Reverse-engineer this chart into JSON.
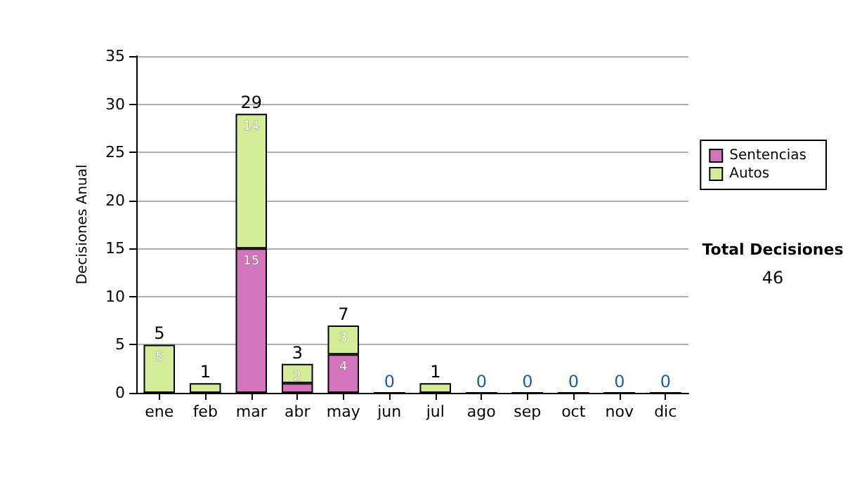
{
  "chart_data": {
    "type": "bar",
    "stacked": true,
    "ylabel": "Decisiones Anual",
    "categories": [
      "ene",
      "feb",
      "mar",
      "abr",
      "may",
      "jun",
      "jul",
      "ago",
      "sep",
      "oct",
      "nov",
      "dic"
    ],
    "series": [
      {
        "name": "Sentencias",
        "color": "#d474bc",
        "values": [
          0,
          0,
          15,
          1,
          4,
          0,
          0,
          0,
          0,
          0,
          0,
          0
        ],
        "value_labels": [
          null,
          null,
          "15",
          null,
          "4",
          null,
          null,
          null,
          null,
          null,
          null,
          null
        ]
      },
      {
        "name": "Autos",
        "color": "#d4ec98",
        "values": [
          5,
          1,
          14,
          2,
          3,
          0,
          1,
          0,
          0,
          0,
          0,
          0
        ],
        "value_labels": [
          "5",
          null,
          "14",
          "2",
          "3",
          null,
          null,
          null,
          null,
          null,
          null,
          null
        ]
      }
    ],
    "totals": [
      "5",
      "1",
      "29",
      "3",
      "7",
      "0",
      "1",
      "0",
      "0",
      "0",
      "0",
      "0"
    ],
    "ylim": [
      0,
      35
    ],
    "yticks": [
      0,
      5,
      10,
      15,
      20,
      25,
      30,
      35
    ],
    "grid": "y",
    "legend": "right",
    "annotations": [
      "Total Decisiones",
      "46"
    ]
  }
}
